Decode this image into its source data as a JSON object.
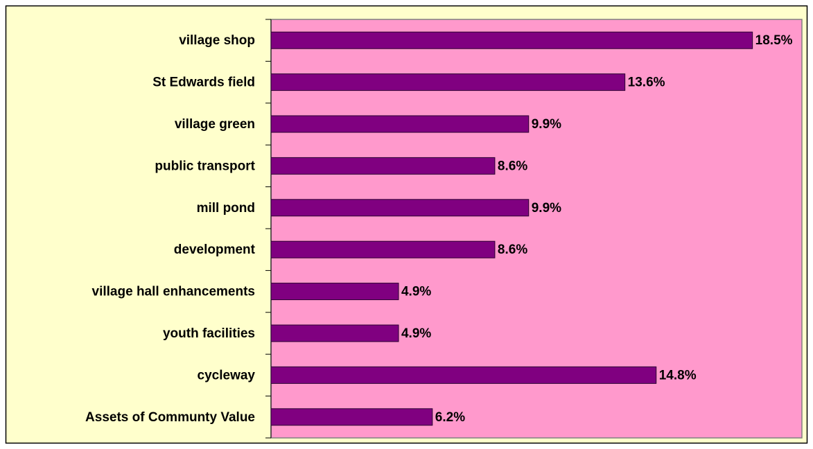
{
  "chart_data": {
    "type": "hbar",
    "categories": [
      "village shop",
      "St Edwards field",
      "village green",
      "public transport",
      "mill pond",
      "development",
      "village hall enhancements",
      "youth facilities",
      "cycleway",
      "Assets of Communty Value"
    ],
    "values": [
      18.5,
      13.6,
      9.9,
      8.6,
      9.9,
      8.6,
      4.9,
      4.9,
      14.8,
      6.2
    ],
    "value_labels": [
      "18.5%",
      "13.6%",
      "9.9%",
      "8.6%",
      "9.9%",
      "8.6%",
      "4.9%",
      "4.9%",
      "14.8%",
      "6.2%"
    ],
    "color": "#800080",
    "plot_background": "#ff99cc",
    "background": "#ffffcc",
    "xlim": [
      0,
      20.4
    ]
  }
}
